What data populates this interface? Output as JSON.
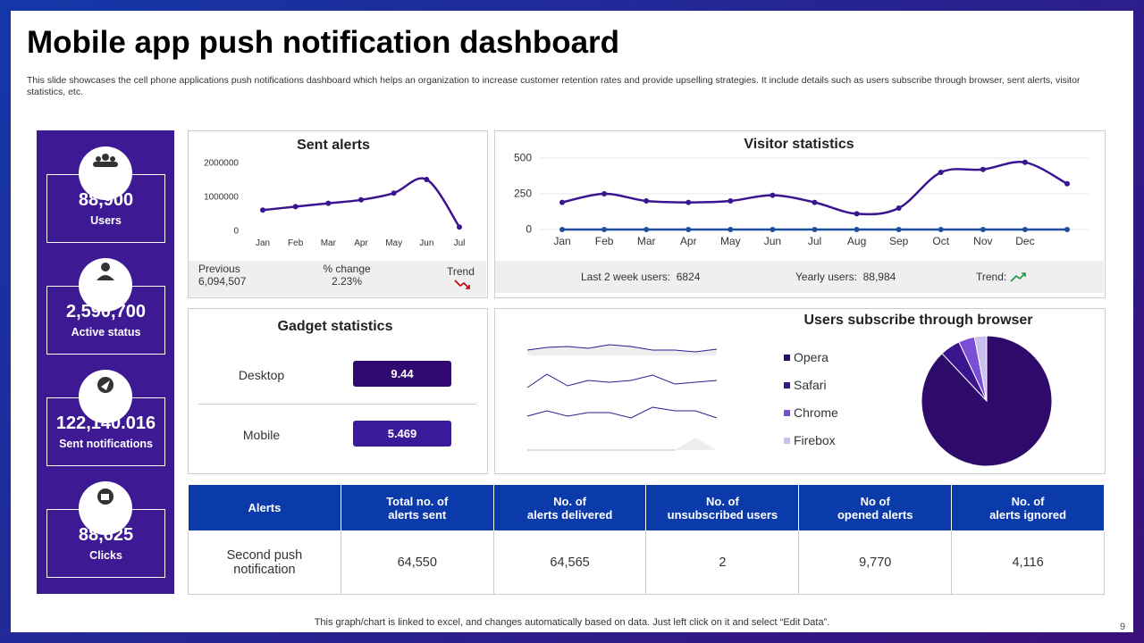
{
  "header": {
    "title": "Mobile app push notification dashboard",
    "description": "This slide showcases the cell phone applications push notifications dashboard which helps an organization to increase customer retention rates and provide upselling strategies. It include details such as users subscribe through browser, sent alerts, visitor statistics, etc."
  },
  "kpis": [
    {
      "value": "88,900",
      "label": "Users"
    },
    {
      "value": "2,590,700",
      "label": "Active status"
    },
    {
      "value": "122,140.016",
      "label": "Sent notifications"
    },
    {
      "value": "88,625",
      "label": "Clicks"
    }
  ],
  "sent_alerts": {
    "type": "line",
    "title": "Sent alerts",
    "categories": [
      "Jan",
      "Feb",
      "Mar",
      "Apr",
      "May",
      "Jun",
      "Jul"
    ],
    "series": [
      {
        "color": "#3b1590",
        "values": [
          600000,
          700000,
          800000,
          900000,
          1100000,
          1500000,
          100000
        ]
      }
    ],
    "ylim": [
      0,
      2000000
    ],
    "yticks": [
      0,
      1000000,
      2000000
    ],
    "previous_label": "Previous",
    "previous": "6,094,507",
    "change_label": "% change",
    "change": "2.23%",
    "trend_label": "Trend"
  },
  "visitor_statistics": {
    "type": "line",
    "title": "Visitor statistics",
    "categories": [
      "Jan",
      "Feb",
      "Mar",
      "Apr",
      "May",
      "Jun",
      "Jul",
      "Aug",
      "Sep",
      "Oct",
      "Nov",
      "Dec",
      null
    ],
    "series": [
      {
        "color": "#3b1590",
        "values": [
          190,
          250,
          200,
          190,
          200,
          240,
          190,
          110,
          150,
          400,
          420,
          470,
          320
        ]
      },
      {
        "color": "#1f4e9c",
        "values": [
          0,
          0,
          0,
          0,
          0,
          0,
          0,
          0,
          0,
          0,
          0,
          0,
          0
        ]
      }
    ],
    "ylim": [
      0,
      500
    ],
    "yticks": [
      0,
      250,
      500
    ],
    "last_2_week_label": "Last 2 week users:",
    "last_2_week": "6824",
    "yearly_label": "Yearly users:",
    "yearly": "88,984",
    "trend_label": "Trend:"
  },
  "gadget_statistics": {
    "title": "Gadget statistics",
    "items": [
      {
        "label": "Desktop",
        "value": "9.44",
        "color": "#300a70"
      },
      {
        "label": "Mobile",
        "value": "5.469",
        "color": "#3a1a9a"
      }
    ]
  },
  "browser_subscriptions": {
    "type": "pie",
    "title": "Users subscribe through browser",
    "categories": [
      "Opera",
      "Safari",
      "Chrome",
      "Firebox"
    ],
    "values": [
      88,
      5,
      4,
      3
    ],
    "colors": [
      "#2e0a6b",
      "#3b1590",
      "#7a4fd6",
      "#c9c0ee"
    ]
  },
  "table": {
    "columns": [
      "Alerts",
      "Total no. of\nalerts sent",
      "No. of\nalerts delivered",
      "No. of\nunsubscribed  users",
      "No of\nopened alerts",
      "No. of\nalerts ignored"
    ],
    "rows": [
      [
        "Second push\nnotification",
        "64,550",
        "64,565",
        "2",
        "9,770",
        "4,116"
      ]
    ]
  },
  "footer": {
    "note": "This graph/chart is linked to excel,  and changes automatically based on data. Just left click on it and select “Edit Data”.",
    "page": "9"
  }
}
